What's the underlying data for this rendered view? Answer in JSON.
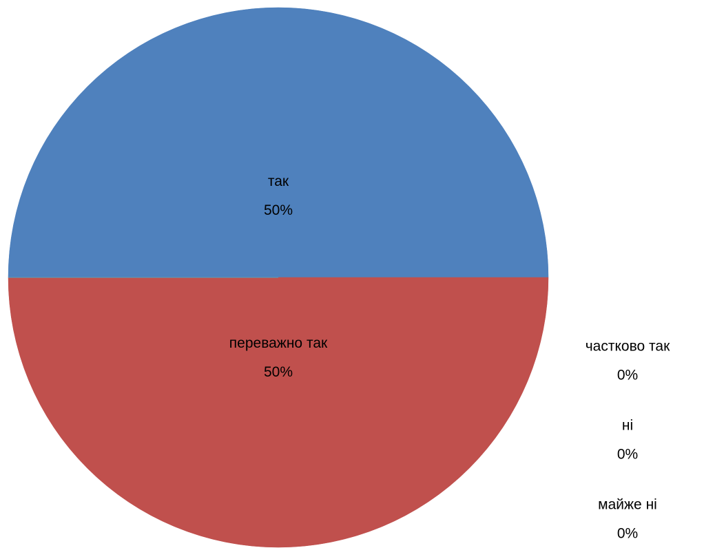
{
  "chart_data": {
    "type": "pie",
    "categories": [
      "так",
      "переважно так",
      "частково так",
      "ні",
      "майже ні"
    ],
    "values": [
      50,
      50,
      0,
      0,
      0
    ],
    "value_labels": [
      "50%",
      "50%",
      "0%",
      "0%",
      "0%"
    ],
    "colors": [
      "#4f81bd",
      "#c0504d",
      "#9bbb59",
      "#8064a2",
      "#4bacc6"
    ]
  }
}
